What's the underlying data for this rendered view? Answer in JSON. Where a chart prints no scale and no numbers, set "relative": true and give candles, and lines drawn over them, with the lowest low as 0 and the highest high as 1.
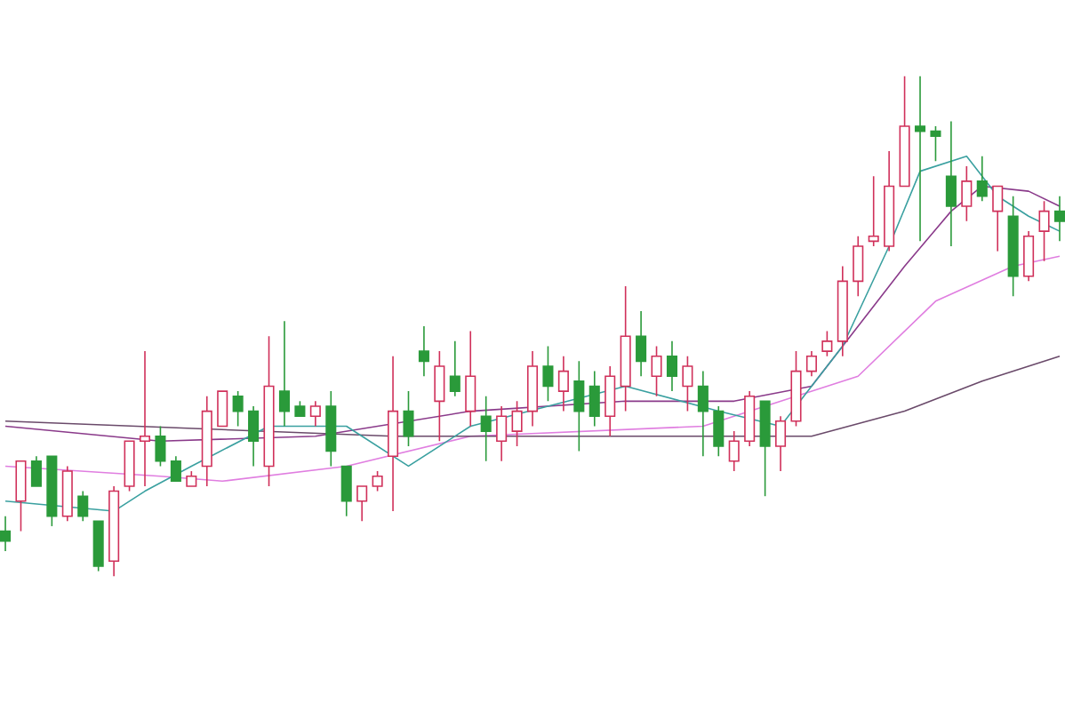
{
  "chart_data": {
    "type": "candlestick",
    "relative": true,
    "categories": [
      null,
      null,
      null,
      null,
      null,
      null,
      null,
      null,
      null,
      null,
      null,
      null,
      null,
      null,
      null,
      null,
      null,
      null,
      null,
      null,
      null,
      null,
      null,
      null,
      null,
      null,
      null,
      null,
      null,
      null,
      null,
      null,
      null,
      null,
      null,
      null,
      null,
      null,
      null,
      null,
      null,
      null,
      null,
      null,
      null,
      null,
      null,
      null,
      null,
      null,
      null,
      null,
      null,
      null,
      null,
      null,
      null,
      null,
      null,
      null,
      null,
      null,
      null,
      null,
      null,
      null,
      null,
      null,
      null
    ],
    "ohlc": [
      [
        0.09,
        0.12,
        0.05,
        0.07
      ],
      [
        0.15,
        0.23,
        0.09,
        0.23
      ],
      [
        0.23,
        0.24,
        0.18,
        0.18
      ],
      [
        0.24,
        0.24,
        0.1,
        0.12
      ],
      [
        0.12,
        0.22,
        0.11,
        0.21
      ],
      [
        0.16,
        0.17,
        0.11,
        0.12
      ],
      [
        0.11,
        0.11,
        0.01,
        0.02
      ],
      [
        0.03,
        0.18,
        0,
        0.17
      ],
      [
        0.18,
        0.27,
        0.17,
        0.27
      ],
      [
        0.27,
        0.45,
        0.18,
        0.28
      ],
      [
        0.28,
        0.3,
        0.22,
        0.23
      ],
      [
        0.23,
        0.24,
        0.19,
        0.19
      ],
      [
        0.18,
        0.21,
        0.18,
        0.2
      ],
      [
        0.22,
        0.36,
        0.18,
        0.33
      ],
      [
        0.3,
        0.37,
        0.3,
        0.37
      ],
      [
        0.36,
        0.37,
        0.3,
        0.33
      ],
      [
        0.33,
        0.34,
        0.22,
        0.27
      ],
      [
        0.22,
        0.48,
        0.18,
        0.38
      ],
      [
        0.37,
        0.51,
        0.3,
        0.33
      ],
      [
        0.34,
        0.35,
        0.32,
        0.32
      ],
      [
        0.32,
        0.35,
        0.3,
        0.34
      ],
      [
        0.34,
        0.37,
        0.22,
        0.25
      ],
      [
        0.22,
        0.22,
        0.12,
        0.15
      ],
      [
        0.15,
        0.18,
        0.11,
        0.18
      ],
      [
        0.18,
        0.21,
        0.17,
        0.2
      ],
      [
        0.24,
        0.44,
        0.13,
        0.33
      ],
      [
        0.33,
        0.37,
        0.26,
        0.28
      ],
      [
        0.45,
        0.5,
        0.4,
        0.43
      ],
      [
        0.35,
        0.45,
        0.27,
        0.42
      ],
      [
        0.4,
        0.47,
        0.36,
        0.37
      ],
      [
        0.33,
        0.49,
        0.3,
        0.4
      ],
      [
        0.32,
        0.36,
        0.23,
        0.29
      ],
      [
        0.27,
        0.34,
        0.23,
        0.32
      ],
      [
        0.29,
        0.35,
        0.26,
        0.33
      ],
      [
        0.33,
        0.45,
        0.3,
        0.42
      ],
      [
        0.42,
        0.46,
        0.35,
        0.38
      ],
      [
        0.37,
        0.44,
        0.33,
        0.41
      ],
      [
        0.39,
        0.43,
        0.25,
        0.33
      ],
      [
        0.38,
        0.41,
        0.3,
        0.32
      ],
      [
        0.32,
        0.42,
        0.28,
        0.4
      ],
      [
        0.38,
        0.58,
        0.33,
        0.48
      ],
      [
        0.48,
        0.53,
        0.4,
        0.43
      ],
      [
        0.4,
        0.46,
        0.36,
        0.44
      ],
      [
        0.44,
        0.47,
        0.37,
        0.4
      ],
      [
        0.38,
        0.44,
        0.33,
        0.42
      ],
      [
        0.38,
        0.41,
        0.24,
        0.33
      ],
      [
        0.33,
        0.34,
        0.24,
        0.26
      ],
      [
        0.23,
        0.29,
        0.21,
        0.27
      ],
      [
        0.27,
        0.37,
        0.26,
        0.36
      ],
      [
        0.35,
        0.35,
        0.16,
        0.26
      ],
      [
        0.26,
        0.32,
        0.21,
        0.31
      ],
      [
        0.31,
        0.45,
        0.3,
        0.41
      ],
      [
        0.41,
        0.45,
        0.4,
        0.44
      ],
      [
        0.45,
        0.49,
        0.44,
        0.47
      ],
      [
        0.47,
        0.62,
        0.44,
        0.59
      ],
      [
        0.59,
        0.68,
        0.56,
        0.66
      ],
      [
        0.67,
        0.8,
        0.66,
        0.68
      ],
      [
        0.66,
        0.85,
        0.65,
        0.78
      ],
      [
        0.78,
        1.0,
        0.78,
        0.9
      ],
      [
        0.9,
        1.0,
        0.67,
        0.89
      ],
      [
        0.89,
        0.9,
        0.83,
        0.88
      ],
      [
        0.8,
        0.91,
        0.66,
        0.74
      ],
      [
        0.74,
        0.82,
        0.71,
        0.79
      ],
      [
        0.79,
        0.84,
        0.75,
        0.76
      ],
      [
        0.73,
        0.78,
        0.65,
        0.78
      ],
      [
        0.72,
        0.76,
        0.56,
        0.6
      ],
      [
        0.6,
        0.69,
        0.59,
        0.68
      ],
      [
        0.69,
        0.75,
        0.63,
        0.73
      ],
      [
        0.73,
        0.76,
        0.67,
        0.71
      ]
    ],
    "colors": [
      "#2a9a3a",
      "#d0305a",
      "#2a9a3a",
      "#2a9a3a",
      "#d0305a",
      "#2a9a3a",
      "#2a9a3a",
      "#d0305a",
      "#d0305a",
      "#d0305a",
      "#2a9a3a",
      "#2a9a3a",
      "#d0305a",
      "#d0305a",
      "#d0305a",
      "#2a9a3a",
      "#2a9a3a",
      "#d0305a",
      "#2a9a3a",
      "#2a9a3a",
      "#d0305a",
      "#2a9a3a",
      "#2a9a3a",
      "#d0305a",
      "#d0305a",
      "#d0305a",
      "#2a9a3a",
      "#2a9a3a",
      "#d0305a",
      "#2a9a3a",
      "#d0305a",
      "#2a9a3a",
      "#d0305a",
      "#d0305a",
      "#d0305a",
      "#2a9a3a",
      "#d0305a",
      "#2a9a3a",
      "#2a9a3a",
      "#d0305a",
      "#d0305a",
      "#2a9a3a",
      "#d0305a",
      "#2a9a3a",
      "#d0305a",
      "#2a9a3a",
      "#2a9a3a",
      "#d0305a",
      "#d0305a",
      "#2a9a3a",
      "#d0305a",
      "#d0305a",
      "#d0305a",
      "#d0305a",
      "#d0305a",
      "#d0305a",
      "#d0305a",
      "#d0305a",
      "#d0305a",
      "#2a9a3a",
      "#2a9a3a",
      "#2a9a3a",
      "#d0305a",
      "#2a9a3a",
      "#d0305a",
      "#2a9a3a",
      "#d0305a",
      "#d0305a",
      "#2a9a3a"
    ],
    "series": [
      {
        "type": "line",
        "color": "#e07ee0",
        "values": [
          0.22,
          null,
          null,
          null,
          null,
          null,
          null,
          null,
          null,
          null,
          0.2,
          null,
          null,
          null,
          0.19,
          null,
          null,
          null,
          null,
          null,
          null,
          null,
          0.22,
          null,
          null,
          null,
          null,
          null,
          null,
          null,
          0.28,
          null,
          null,
          null,
          null,
          null,
          null,
          null,
          null,
          null,
          null,
          null,
          null,
          null,
          null,
          0.3,
          null,
          null,
          null,
          null,
          null,
          null,
          null,
          null,
          null,
          0.4,
          null,
          null,
          null,
          null,
          0.55,
          null,
          null,
          null,
          null,
          0.62,
          null,
          null,
          0.64
        ]
      },
      {
        "type": "line",
        "color": "#6a4a6a",
        "values": [
          0.31,
          null,
          null,
          null,
          null,
          null,
          null,
          null,
          null,
          null,
          null,
          null,
          null,
          null,
          null,
          null,
          null,
          null,
          null,
          null,
          null,
          null,
          null,
          null,
          null,
          0.28,
          null,
          null,
          null,
          null,
          null,
          null,
          null,
          null,
          null,
          null,
          null,
          null,
          null,
          null,
          null,
          null,
          null,
          null,
          null,
          0.28,
          null,
          null,
          null,
          null,
          null,
          null,
          0.28,
          null,
          null,
          null,
          null,
          null,
          0.33,
          null,
          null,
          null,
          null,
          0.39,
          null,
          null,
          null,
          null,
          0.44
        ]
      },
      {
        "type": "line",
        "color": "#8a3a8a",
        "values": [
          0.3,
          null,
          null,
          null,
          null,
          null,
          null,
          null,
          null,
          null,
          0.27,
          null,
          null,
          null,
          null,
          null,
          null,
          null,
          null,
          null,
          0.28,
          null,
          null,
          null,
          null,
          null,
          null,
          null,
          null,
          null,
          0.33,
          null,
          null,
          null,
          null,
          null,
          null,
          null,
          null,
          null,
          0.35,
          null,
          null,
          null,
          null,
          null,
          null,
          0.35,
          null,
          null,
          null,
          null,
          0.38,
          null,
          null,
          0.5,
          null,
          null,
          0.62,
          null,
          null,
          0.73,
          null,
          0.78,
          null,
          null,
          0.77,
          null,
          0.74
        ]
      },
      {
        "type": "line",
        "color": "#3aa0a0",
        "values": [
          0.15,
          null,
          null,
          null,
          null,
          null,
          null,
          0.13,
          null,
          0.17,
          null,
          null,
          0.22,
          null,
          null,
          null,
          null,
          0.3,
          null,
          null,
          null,
          null,
          0.3,
          null,
          null,
          null,
          0.22,
          null,
          null,
          null,
          0.3,
          null,
          null,
          null,
          null,
          null,
          null,
          null,
          null,
          null,
          0.38,
          null,
          null,
          null,
          null,
          null,
          0.33,
          null,
          null,
          null,
          0.3,
          null,
          null,
          null,
          0.46,
          null,
          null,
          0.66,
          null,
          0.81,
          null,
          null,
          0.84,
          null,
          0.76,
          null,
          0.72,
          null,
          0.69
        ]
      }
    ]
  }
}
